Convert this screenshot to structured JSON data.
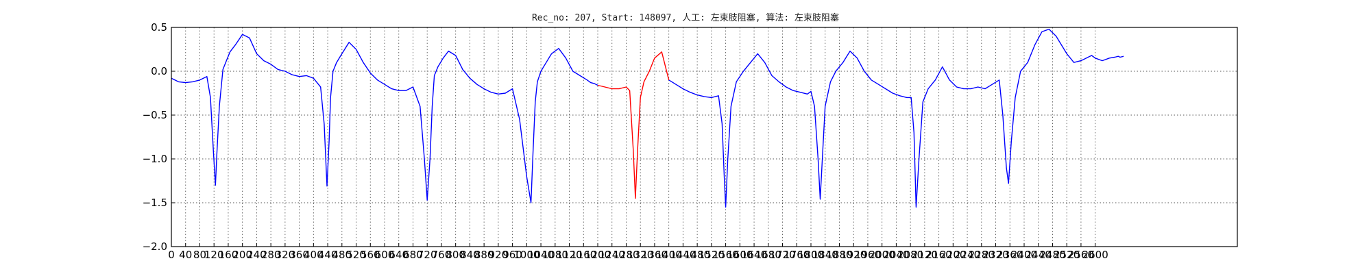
{
  "chart_data": {
    "type": "line",
    "title": "Rec_no: 207, Start: 148097, 人工: 左束肢阻塞, 算法: 左束肢阻塞",
    "xlabel": "",
    "ylabel": "",
    "xlim": [
      0,
      3000
    ],
    "ylim": [
      -2.0,
      0.5
    ],
    "grid": true,
    "x_ticks": [
      0,
      40,
      80,
      120,
      160,
      200,
      240,
      280,
      320,
      360,
      400,
      440,
      480,
      520,
      560,
      600,
      640,
      680,
      720,
      760,
      800,
      840,
      880,
      920,
      960,
      1000,
      1040,
      1080,
      1120,
      1160,
      1200,
      1240,
      1280,
      1320,
      1360,
      1400,
      1440,
      1480,
      1520,
      1560,
      1600,
      1640,
      1680,
      1720,
      1760,
      1800,
      1840,
      1880,
      1920,
      1960,
      2000,
      2040,
      2080,
      2120,
      2160,
      2200,
      2240,
      2280,
      2320,
      2360,
      2400,
      2440,
      2480,
      2520,
      2560,
      2600
    ],
    "x_tick_labels": [
      "0",
      "40",
      "80",
      "120",
      "160",
      "200",
      "240",
      "280",
      "320",
      "360",
      "400",
      "440",
      "480",
      "520",
      "560",
      "600",
      "640",
      "680",
      "720",
      "760",
      "800",
      "840",
      "880",
      "920",
      "960",
      "1000",
      "1040",
      "1080",
      "1120",
      "1160",
      "1200",
      "1240",
      "1280",
      "1320",
      "1360",
      "1400",
      "1440",
      "1480",
      "1520",
      "1560",
      "1600",
      "1640",
      "1680",
      "1720",
      "1760",
      "1800",
      "1840",
      "1880",
      "1920",
      "1960",
      "2000",
      "2040",
      "2080",
      "2120",
      "2160",
      "2200",
      "2240",
      "2280",
      "2320",
      "2360",
      "2400",
      "2440",
      "2480",
      "2520",
      "2560",
      "2600"
    ],
    "y_ticks": [
      0.5,
      0.0,
      -0.5,
      -1.0,
      -1.5,
      -2.0
    ],
    "y_tick_labels": [
      "0.5",
      "0.0",
      "−0.5",
      "−1.0",
      "−1.5",
      "−2.0"
    ],
    "series": [
      {
        "color": "#0000ff",
        "segments": [
          {
            "x": [
              0,
              20,
              40,
              60,
              80,
              100,
              110,
              118,
              124,
              128,
              135,
              145,
              155,
              165,
              180,
              200,
              220,
              240,
              260,
              280,
              300,
              320,
              340,
              360,
              380,
              400,
              420,
              430,
              438,
              444,
              448,
              455,
              465,
              480,
              500,
              520,
              540,
              560,
              580,
              600,
              620,
              640,
              660,
              680,
              700,
              712,
              720,
              728,
              734,
              740,
              750,
              765,
              780,
              800,
              820,
              840,
              860,
              880,
              900,
              920,
              940,
              960,
              980,
              1000,
              1012,
              1018,
              1024,
              1030,
              1040,
              1055,
              1070,
              1090,
              1110,
              1130,
              1150,
              1170,
              1180,
              1190,
              1200
            ],
            "y": [
              -0.08,
              -0.12,
              -0.13,
              -0.12,
              -0.1,
              -0.06,
              -0.3,
              -0.9,
              -1.3,
              -0.95,
              -0.4,
              0.02,
              0.12,
              0.22,
              0.3,
              0.42,
              0.38,
              0.2,
              0.12,
              0.08,
              0.02,
              0.0,
              -0.04,
              -0.06,
              -0.05,
              -0.08,
              -0.18,
              -0.6,
              -1.31,
              -0.8,
              -0.3,
              0.0,
              0.1,
              0.2,
              0.33,
              0.25,
              0.1,
              -0.02,
              -0.1,
              -0.15,
              -0.2,
              -0.22,
              -0.22,
              -0.18,
              -0.4,
              -1.0,
              -1.47,
              -1.0,
              -0.4,
              -0.05,
              0.05,
              0.15,
              0.23,
              0.18,
              0.02,
              -0.08,
              -0.15,
              -0.2,
              -0.24,
              -0.26,
              -0.25,
              -0.2,
              -0.55,
              -1.2,
              -1.5,
              -0.9,
              -0.35,
              -0.12,
              0.0,
              0.1,
              0.2,
              0.26,
              0.15,
              0.0,
              -0.05,
              -0.1,
              -0.13,
              -0.14,
              -0.16
            ]
          },
          {
            "x": [
              1400,
              1420,
              1440,
              1460,
              1480,
              1500,
              1520,
              1540,
              1550,
              1556,
              1560,
              1566,
              1575,
              1590,
              1610,
              1630,
              1650,
              1670,
              1690,
              1710,
              1730,
              1750,
              1770,
              1790,
              1800,
              1810,
              1820,
              1826,
              1832,
              1840,
              1855,
              1870,
              1890,
              1910,
              1930,
              1950,
              1970,
              1990,
              2010,
              2030,
              2050,
              2070,
              2082,
              2090,
              2096,
              2104,
              2115,
              2130,
              2150,
              2170,
              2190,
              2210,
              2230,
              2250,
              2270,
              2290,
              2310,
              2330,
              2340,
              2350,
              2356,
              2364,
              2375,
              2390,
              2410,
              2430,
              2450,
              2470,
              2490,
              2520,
              2540,
              2560,
              2570,
              2580,
              2590,
              2600,
              2620,
              2640,
              2655,
              2665,
              2670,
              2680
            ],
            "y": [
              -0.1,
              -0.15,
              -0.2,
              -0.24,
              -0.27,
              -0.29,
              -0.3,
              -0.28,
              -0.6,
              -1.2,
              -1.55,
              -1.0,
              -0.4,
              -0.12,
              0.0,
              0.1,
              0.2,
              0.1,
              -0.05,
              -0.12,
              -0.18,
              -0.22,
              -0.24,
              -0.26,
              -0.23,
              -0.4,
              -1.0,
              -1.46,
              -1.0,
              -0.4,
              -0.12,
              0.0,
              0.1,
              0.23,
              0.15,
              0.0,
              -0.1,
              -0.15,
              -0.2,
              -0.25,
              -0.28,
              -0.3,
              -0.3,
              -0.7,
              -1.55,
              -1.0,
              -0.35,
              -0.2,
              -0.1,
              0.05,
              -0.1,
              -0.18,
              -0.2,
              -0.2,
              -0.18,
              -0.2,
              -0.15,
              -0.1,
              -0.5,
              -1.1,
              -1.28,
              -0.8,
              -0.3,
              0.0,
              0.1,
              0.3,
              0.45,
              0.48,
              0.4,
              0.2,
              0.1,
              0.12,
              0.14,
              0.16,
              0.18,
              0.15,
              0.12,
              0.15,
              0.16,
              0.17,
              0.16,
              0.17
            ]
          }
        ]
      },
      {
        "color": "#ff0000",
        "segments": [
          {
            "x": [
              1200,
              1220,
              1240,
              1260,
              1280,
              1290,
              1300,
              1306,
              1312,
              1320,
              1330,
              1345,
              1360,
              1380,
              1400
            ],
            "y": [
              -0.16,
              -0.18,
              -0.2,
              -0.2,
              -0.18,
              -0.22,
              -0.9,
              -1.45,
              -0.9,
              -0.3,
              -0.12,
              0.0,
              0.15,
              0.22,
              -0.1
            ]
          }
        ]
      }
    ]
  }
}
